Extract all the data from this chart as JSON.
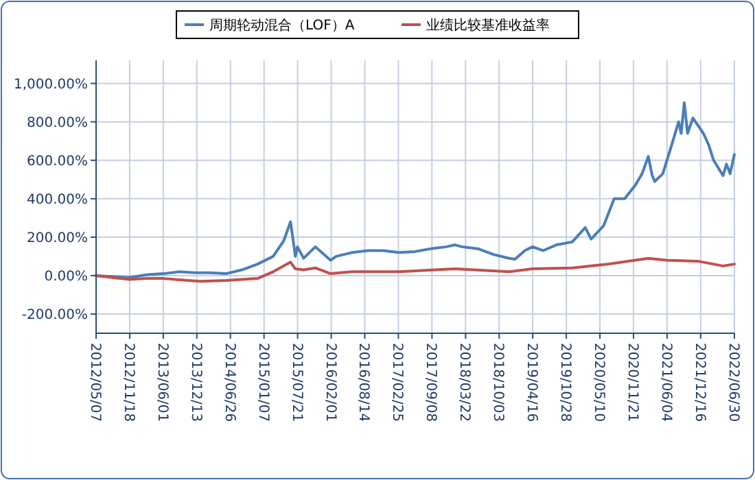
{
  "chart_data": {
    "type": "line",
    "xlim": [
      "2012-05-07",
      "2022-06-30"
    ],
    "xticks": [
      {
        "value": "2012-05-07",
        "label": "2012/05/07"
      },
      {
        "value": "2012-11-18",
        "label": "2012/11/18"
      },
      {
        "value": "2013-06-01",
        "label": "2013/06/01"
      },
      {
        "value": "2013-12-13",
        "label": "2013/12/13"
      },
      {
        "value": "2014-06-26",
        "label": "2014/06/26"
      },
      {
        "value": "2015-01-07",
        "label": "2015/01/07"
      },
      {
        "value": "2015-07-21",
        "label": "2015/07/21"
      },
      {
        "value": "2016-02-01",
        "label": "2016/02/01"
      },
      {
        "value": "2016-08-14",
        "label": "2016/08/14"
      },
      {
        "value": "2017-02-25",
        "label": "2017/02/25"
      },
      {
        "value": "2017-09-08",
        "label": "2017/09/08"
      },
      {
        "value": "2018-03-22",
        "label": "2018/03/22"
      },
      {
        "value": "2018-10-03",
        "label": "2018/10/03"
      },
      {
        "value": "2019-04-16",
        "label": "2019/04/16"
      },
      {
        "value": "2019-10-28",
        "label": "2019/10/28"
      },
      {
        "value": "2020-05-10",
        "label": "2020/05/10"
      },
      {
        "value": "2020-11-21",
        "label": "2020/11/21"
      },
      {
        "value": "2021-06-04",
        "label": "2021/06/04"
      },
      {
        "value": "2021-12-16",
        "label": "2021/12/16"
      },
      {
        "value": "2022-06-30",
        "label": "2022/06/30"
      }
    ],
    "ylim": [
      -300,
      1120
    ],
    "yticks": [
      {
        "value": -200,
        "label": "-200.00%"
      },
      {
        "value": 0,
        "label": "0.00%"
      },
      {
        "value": 200,
        "label": "200.00%"
      },
      {
        "value": 400,
        "label": "400.00%"
      },
      {
        "value": 600,
        "label": "600.00%"
      },
      {
        "value": 800,
        "label": "800.00%"
      },
      {
        "value": 1000,
        "label": "1,000.00%"
      }
    ],
    "grid": true,
    "legend": "top",
    "line_style": "solid",
    "series": [
      {
        "name": "周期轮动混合（LOF）A",
        "color": "#4a7ebb",
        "x": [
          "2012-05-07",
          "2012-11-15",
          "2013-03-01",
          "2013-06-01",
          "2013-09-01",
          "2013-12-01",
          "2014-03-01",
          "2014-06-01",
          "2014-09-01",
          "2014-12-01",
          "2015-03-01",
          "2015-05-01",
          "2015-06-10",
          "2015-07-08",
          "2015-07-20",
          "2015-08-25",
          "2015-11-01",
          "2016-01-28",
          "2016-03-01",
          "2016-06-01",
          "2016-09-01",
          "2016-12-01",
          "2017-03-01",
          "2017-06-01",
          "2017-09-01",
          "2017-12-01",
          "2018-01-20",
          "2018-03-01",
          "2018-06-01",
          "2018-09-01",
          "2018-12-01",
          "2019-01-03",
          "2019-03-01",
          "2019-04-15",
          "2019-06-15",
          "2019-09-01",
          "2019-12-01",
          "2020-02-15",
          "2020-03-20",
          "2020-06-01",
          "2020-08-01",
          "2020-10-01",
          "2020-12-01",
          "2021-01-10",
          "2021-02-15",
          "2021-03-10",
          "2021-03-25",
          "2021-05-10",
          "2021-07-01",
          "2021-08-10",
          "2021-08-25",
          "2021-09-12",
          "2021-10-01",
          "2021-11-01",
          "2022-01-01",
          "2022-02-01",
          "2022-03-01",
          "2022-04-25",
          "2022-05-15",
          "2022-06-05",
          "2022-06-30"
        ],
        "values": [
          0,
          -10,
          5,
          10,
          20,
          15,
          15,
          10,
          30,
          60,
          100,
          180,
          280,
          100,
          150,
          90,
          150,
          80,
          100,
          120,
          130,
          130,
          120,
          125,
          140,
          150,
          160,
          150,
          140,
          110,
          90,
          85,
          130,
          150,
          130,
          160,
          175,
          250,
          190,
          260,
          400,
          400,
          470,
          530,
          620,
          520,
          490,
          530,
          680,
          800,
          740,
          900,
          740,
          820,
          740,
          680,
          600,
          520,
          580,
          530,
          630
        ]
      },
      {
        "name": "业绩比较基准收益率",
        "color": "#c0504d",
        "x": [
          "2012-05-07",
          "2012-11-15",
          "2013-03-01",
          "2013-06-01",
          "2014-01-01",
          "2014-06-01",
          "2014-12-01",
          "2015-03-01",
          "2015-06-10",
          "2015-07-08",
          "2015-08-25",
          "2015-11-01",
          "2016-01-28",
          "2016-06-01",
          "2017-03-01",
          "2018-01-20",
          "2018-12-01",
          "2019-04-15",
          "2019-12-01",
          "2020-07-01",
          "2021-02-15",
          "2021-06-01",
          "2021-12-01",
          "2022-04-25",
          "2022-06-30"
        ],
        "values": [
          0,
          -20,
          -15,
          -15,
          -30,
          -25,
          -15,
          20,
          70,
          35,
          30,
          40,
          10,
          20,
          20,
          35,
          20,
          35,
          40,
          60,
          90,
          80,
          75,
          50,
          60
        ]
      }
    ]
  }
}
